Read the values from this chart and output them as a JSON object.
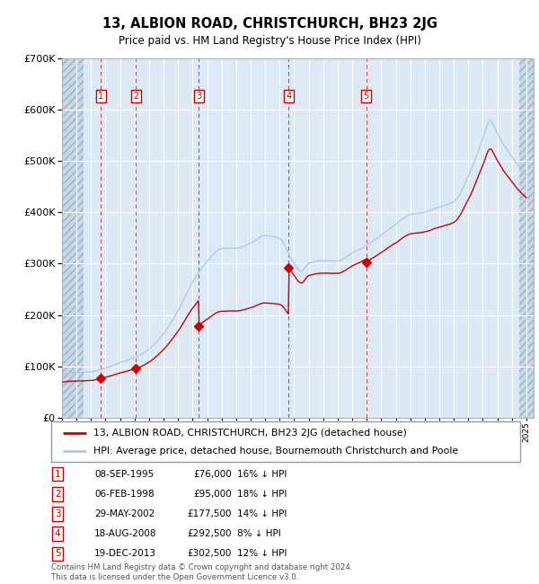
{
  "title": "13, ALBION ROAD, CHRISTCHURCH, BH23 2JG",
  "subtitle": "Price paid vs. HM Land Registry's House Price Index (HPI)",
  "transactions": [
    {
      "num": 1,
      "date": "08-SEP-1995",
      "price": 76000,
      "pct": "16%",
      "x_year": 1995.69
    },
    {
      "num": 2,
      "date": "06-FEB-1998",
      "price": 95000,
      "pct": "18%",
      "x_year": 1998.1
    },
    {
      "num": 3,
      "date": "29-MAY-2002",
      "price": 177500,
      "pct": "14%",
      "x_year": 2002.41
    },
    {
      "num": 4,
      "date": "18-AUG-2008",
      "price": 292500,
      "pct": "8%",
      "x_year": 2008.63
    },
    {
      "num": 5,
      "date": "19-DEC-2013",
      "price": 302500,
      "pct": "12%",
      "x_year": 2013.97
    }
  ],
  "hpi_line_color": "#a8c8e8",
  "price_line_color": "#cc0000",
  "marker_color": "#cc0000",
  "dashed_line_color": "#cc0000",
  "bg_color": "#ddeaf6",
  "hatch_bg_color": "#c8d8e8",
  "grid_color": "#ffffff",
  "footer_text": "Contains HM Land Registry data © Crown copyright and database right 2024.\nThis data is licensed under the Open Government Licence v3.0.",
  "legend_line1": "13, ALBION ROAD, CHRISTCHURCH, BH23 2JG (detached house)",
  "legend_line2": "HPI: Average price, detached house, Bournemouth Christchurch and Poole",
  "ylim": [
    0,
    700000
  ],
  "xlim_start": 1993.0,
  "xlim_end": 2025.5
}
